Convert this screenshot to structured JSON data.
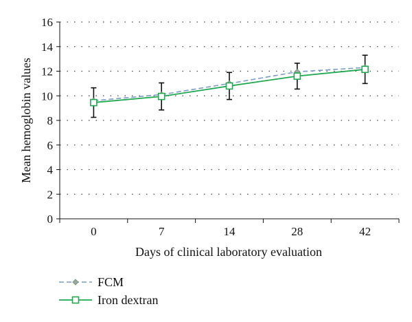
{
  "chart_data": {
    "type": "line",
    "title": "",
    "xlabel": "Days of clinical laboratory evaluation",
    "ylabel": "Mean hemoglobin values",
    "categories": [
      "0",
      "7",
      "14",
      "28",
      "42"
    ],
    "ylim": [
      0,
      16
    ],
    "yticks": [
      "0",
      "2",
      "4",
      "6",
      "8",
      "10",
      "12",
      "14",
      "16"
    ],
    "grid": "horizontal-dotted",
    "legend_position": "bottom-left",
    "series": [
      {
        "name": "FCM",
        "values": [
          9.6,
          10.1,
          11.0,
          11.95,
          12.3
        ],
        "error": [
          null,
          null,
          null,
          null,
          null
        ],
        "color": "#7a9cc6",
        "line_style": "dashed",
        "marker": "diamond"
      },
      {
        "name": "Iron dextran",
        "values": [
          9.45,
          9.95,
          10.8,
          11.6,
          12.15
        ],
        "error": [
          1.2,
          1.1,
          1.1,
          1.05,
          1.15
        ],
        "color": "#1fa84f",
        "line_style": "solid",
        "marker": "square"
      }
    ]
  }
}
